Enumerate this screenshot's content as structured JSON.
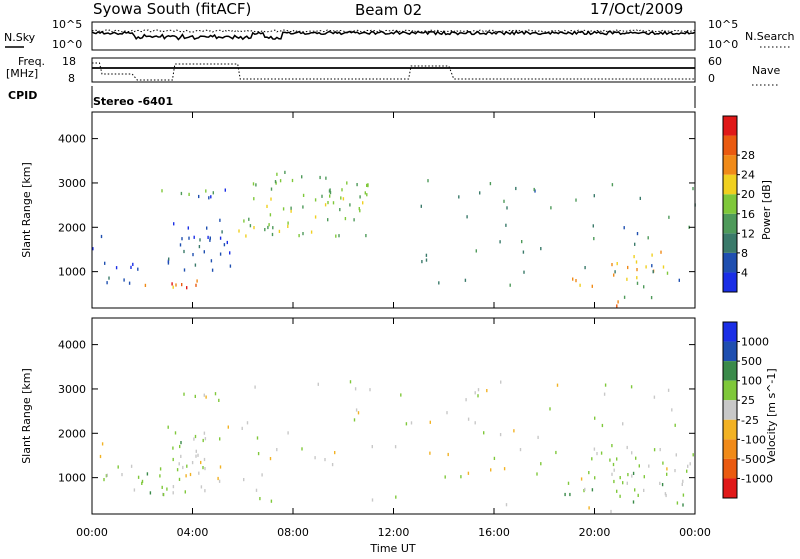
{
  "header": {
    "station": "Syowa South (fitACF)",
    "beam": "Beam 02",
    "date": "17/Oct/2009"
  },
  "top_panels": {
    "nsky_label": "N.Sky",
    "nsky_ticks": [
      "10^5",
      "10^0"
    ],
    "nsearch_label": "N.Search",
    "nsearch_ticks": [
      "10^5",
      "10^0"
    ],
    "freq_label": "Freq.",
    "freq_unit": "[MHz]",
    "freq_ticks": [
      "18",
      "8"
    ],
    "nave_label": "Nave",
    "nave_ticks": [
      "60",
      "0"
    ],
    "cpid_label": "CPID",
    "cpid_value": "Stereo -6401"
  },
  "xaxis": {
    "ticks": [
      "00:00",
      "04:00",
      "08:00",
      "12:00",
      "16:00",
      "20:00",
      "00:00"
    ],
    "label": "Time UT"
  },
  "colors": {
    "power": [
      "#1a2ee6",
      "#1f4fb0",
      "#3a7a6a",
      "#4e9a5a",
      "#7fc83a",
      "#f0d020",
      "#f08a18",
      "#ea5a10",
      "#e01818"
    ],
    "velocity": [
      "#e01818",
      "#ea5a10",
      "#f08a18",
      "#f2b224",
      "#c8c8c8",
      "#7fc83a",
      "#3a8a4a",
      "#1f4fb0",
      "#1a2ee6"
    ]
  },
  "chart_data": [
    {
      "type": "heatmap",
      "title": "Power",
      "ylabel": "Slant Range [km]",
      "xlabel": "Time UT",
      "xlim": [
        0,
        24
      ],
      "ylim": [
        180,
        4600
      ],
      "yticks": [
        "1000",
        "2000",
        "3000",
        "4000"
      ],
      "colorbar": {
        "label": "Power [dB]",
        "ticks": [
          "4",
          "8",
          "12",
          "16",
          "20",
          "24",
          "28"
        ],
        "range": [
          0,
          30
        ]
      },
      "regions": [
        {
          "t": [
            0.2,
            1.8
          ],
          "r": [
            650,
            1300
          ],
          "value": 4
        },
        {
          "t": [
            1.4,
            3.6
          ],
          "r": [
            650,
            850
          ],
          "value": 22
        },
        {
          "t": [
            2.8,
            4.4
          ],
          "r": [
            650,
            900
          ],
          "value": 26
        },
        {
          "t": [
            3.0,
            5.6
          ],
          "r": [
            900,
            2200
          ],
          "value": 5
        },
        {
          "t": [
            2.4,
            5.4
          ],
          "r": [
            2750,
            2950
          ],
          "value": 12
        },
        {
          "t": [
            4.0,
            5.8
          ],
          "r": [
            2700,
            2950
          ],
          "value": 3
        },
        {
          "t": [
            5.8,
            11.0
          ],
          "r": [
            1800,
            3300
          ],
          "value": 14
        },
        {
          "t": [
            0.0,
            0.5
          ],
          "r": [
            1500,
            1900
          ],
          "value": 4
        },
        {
          "t": [
            18.8,
            20.2
          ],
          "r": [
            700,
            1050
          ],
          "value": 23
        },
        {
          "t": [
            19.6,
            21.0
          ],
          "r": [
            250,
            380
          ],
          "value": 24
        },
        {
          "t": [
            20.6,
            22.8
          ],
          "r": [
            800,
            1500
          ],
          "value": 18
        },
        {
          "t": [
            13.0,
            24.0
          ],
          "r": [
            400,
            3200
          ],
          "value": 10
        }
      ]
    },
    {
      "type": "heatmap",
      "title": "Velocity",
      "ylabel": "Slant Range [km]",
      "xlabel": "Time UT",
      "xlim": [
        0,
        24
      ],
      "ylim": [
        180,
        4600
      ],
      "yticks": [
        "1000",
        "2000",
        "3000",
        "4000"
      ],
      "colorbar": {
        "label": "Velocity [m s^-1]",
        "ticks": [
          "1000",
          "500",
          "100",
          "25",
          "-25",
          "-100",
          "-500",
          "-1000"
        ],
        "range": [
          -1200,
          1200
        ]
      },
      "regions": [
        {
          "t": [
            0.2,
            3.0
          ],
          "r": [
            650,
            1300
          ],
          "value": -300
        },
        {
          "t": [
            2.8,
            4.6
          ],
          "r": [
            650,
            2300
          ],
          "value": -200
        },
        {
          "t": [
            3.4,
            5.2
          ],
          "r": [
            900,
            1600
          ],
          "value": 150
        },
        {
          "t": [
            2.4,
            6.0
          ],
          "r": [
            2750,
            2950
          ],
          "value": 0
        },
        {
          "t": [
            0.0,
            0.6
          ],
          "r": [
            1500,
            1900
          ],
          "value": 120
        },
        {
          "t": [
            18.8,
            20.4
          ],
          "r": [
            650,
            1100
          ],
          "value": -300
        },
        {
          "t": [
            19.6,
            21.0
          ],
          "r": [
            250,
            380
          ],
          "value": 120
        },
        {
          "t": [
            20.6,
            24.0
          ],
          "r": [
            400,
            1600
          ],
          "value": -200
        },
        {
          "t": [
            5.0,
            24.0
          ],
          "r": [
            400,
            3300
          ],
          "value": -50
        }
      ]
    }
  ]
}
